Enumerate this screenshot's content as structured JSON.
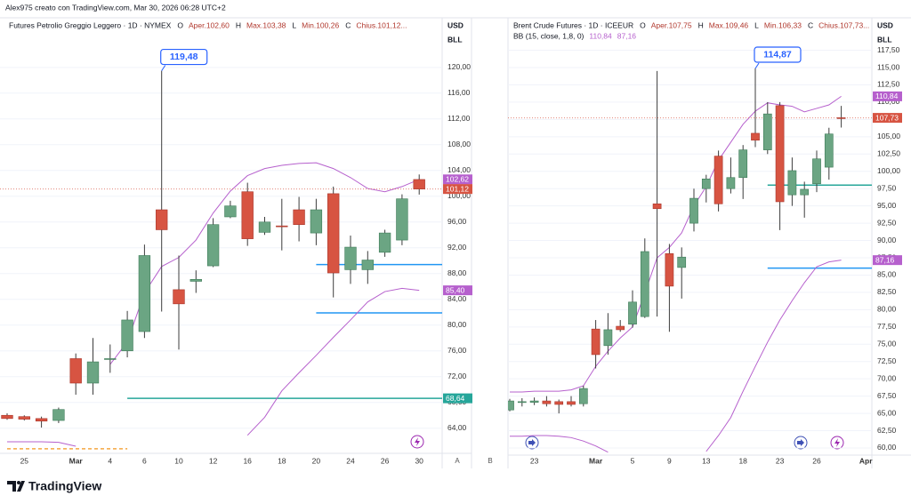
{
  "header": {
    "credit": "Alex975 creato con TradingView.com, Mar 30, 2026 06:28 UTC+2"
  },
  "footer": {
    "logo": "TradingView"
  },
  "axis_buttons": [
    "A",
    "B"
  ],
  "chart_data": [
    {
      "type": "candlestick",
      "title": "Futures Petrolio Greggio Leggero · 1D · NYMEX",
      "ohlc_legend": [
        {
          "key": "O",
          "label": "Aper.102,60"
        },
        {
          "key": "H",
          "label": "Max.103,38"
        },
        {
          "key": "L",
          "label": "Min.100,26"
        },
        {
          "key": "C",
          "label": "Chius.101,12..."
        }
      ],
      "currency": "USD",
      "unit": "BLL",
      "up_color": "#6ba583",
      "down_color": "#d75442",
      "categories": [
        null,
        "25",
        null,
        null,
        "Mar",
        null,
        "4",
        null,
        "6",
        null,
        "10",
        null,
        "12",
        null,
        "16",
        null,
        "18",
        null,
        "20",
        null,
        "24",
        null,
        "26",
        null,
        "30"
      ],
      "open": [
        66.0,
        65.8,
        65.5,
        65.2,
        74.8,
        71.0,
        74.7,
        76.0,
        79.0,
        97.9,
        85.5,
        86.8,
        89.2,
        96.8,
        100.7,
        94.4,
        95.4,
        97.9,
        94.3,
        100.4,
        88.6,
        88.6,
        91.3,
        93.2,
        102.6
      ],
      "high": [
        66.3,
        66.0,
        65.8,
        67.2,
        75.6,
        78.0,
        77.0,
        82.2,
        92.5,
        119.48,
        90.8,
        88.5,
        96.6,
        99.3,
        102.1,
        96.8,
        99.6,
        99.9,
        99.6,
        101.5,
        93.9,
        91.5,
        94.8,
        100.3,
        103.38
      ],
      "low": [
        65.3,
        65.2,
        64.1,
        64.8,
        69.2,
        69.2,
        72.6,
        75.0,
        78.0,
        82.1,
        76.2,
        85.0,
        89.0,
        96.6,
        92.3,
        94.0,
        91.6,
        93.0,
        92.4,
        84.3,
        86.4,
        86.4,
        90.6,
        92.4,
        100.26
      ],
      "close": [
        65.5,
        65.4,
        65.1,
        66.9,
        71.0,
        74.3,
        74.8,
        80.8,
        90.8,
        94.8,
        83.3,
        87.1,
        95.6,
        98.5,
        93.4,
        96.0,
        95.3,
        95.6,
        97.9,
        88.1,
        92.1,
        90.1,
        94.3,
        99.6,
        101.12
      ],
      "close_label": "101,12",
      "max_label": "119,48",
      "bands": [
        {
          "color": "#b660cd",
          "values": [
            null,
            null,
            null,
            null,
            null,
            null,
            73.9,
            77.4,
            85.0,
            89.1,
            90.5,
            93.2,
            97.4,
            100.8,
            103.2,
            104.3,
            104.8,
            105.1,
            105.2,
            104.3,
            102.9,
            101.2,
            100.7,
            101.5,
            102.62
          ],
          "last_label": "102,62"
        },
        {
          "color": "#b660cd",
          "values": [
            61.9,
            61.9,
            61.9,
            61.8,
            61.2,
            null,
            null,
            null,
            null,
            null,
            null,
            null,
            null,
            null,
            62.9,
            65.7,
            69.8,
            72.6,
            75.3,
            78.1,
            80.8,
            83.6,
            85.2,
            85.7,
            85.4
          ],
          "last_label": "85,40"
        }
      ],
      "hlines": [
        {
          "value": 68.64,
          "color": "#26a69a",
          "start": 7,
          "label": "68,64"
        },
        {
          "value": 81.9,
          "color": "#2196f3",
          "start": 18
        },
        {
          "value": 89.4,
          "color": "#2196f3",
          "start": 18
        },
        {
          "value": 60.8,
          "color": "#f5a742",
          "start": 0,
          "end": 7,
          "dashed": true
        }
      ],
      "ylim": [
        60.1,
        127.7
      ],
      "yticks": [
        {
          "value": 64,
          "label": "64,00"
        },
        {
          "value": 68,
          "label": "68,00"
        },
        {
          "value": 72,
          "label": "72,00"
        },
        {
          "value": 76,
          "label": "76,00"
        },
        {
          "value": 80,
          "label": "80,00"
        },
        {
          "value": 84,
          "label": "84,00"
        },
        {
          "value": 88,
          "label": "88,00"
        },
        {
          "value": 92,
          "label": "92,00"
        },
        {
          "value": 96,
          "label": "96,00"
        },
        {
          "value": 100,
          "label": "100,00"
        },
        {
          "value": 104,
          "label": "104,00"
        },
        {
          "value": 108,
          "label": "108,00"
        },
        {
          "value": 112,
          "label": "112,00"
        },
        {
          "value": 116,
          "label": "116,00"
        },
        {
          "value": 120,
          "label": "120,00"
        }
      ],
      "grid": true
    },
    {
      "type": "candlestick",
      "title": "Brent Crude Futures · 1D · ICEEUR",
      "ohlc_legend": [
        {
          "key": "O",
          "label": "Aper.107,75"
        },
        {
          "key": "H",
          "label": "Max.109,46"
        },
        {
          "key": "L",
          "label": "Min.106,33"
        },
        {
          "key": "C",
          "label": "Chius.107,73..."
        }
      ],
      "indicator": "BB (15, close, 1,8, 0)",
      "currency": "USD",
      "unit": "BLL",
      "up_color": "#6ba583",
      "down_color": "#d75442",
      "categories": [
        null,
        null,
        "23",
        null,
        null,
        null,
        null,
        "Mar",
        null,
        null,
        "5",
        null,
        null,
        "9",
        null,
        null,
        "13",
        null,
        null,
        "18",
        null,
        null,
        "23",
        null,
        null,
        "26",
        null,
        null,
        null,
        "Apr"
      ],
      "open": [
        65.5,
        66.6,
        66.6,
        66.8,
        66.7,
        66.7,
        66.4,
        77.2,
        74.8,
        77.6,
        77.9,
        79.0,
        95.3,
        88.1,
        86.1,
        92.5,
        97.5,
        102.2,
        97.5,
        99.1,
        105.5,
        103.1,
        109.5,
        96.6,
        96.6,
        98.2,
        100.6,
        107.75,
        null,
        null
      ],
      "high": [
        67.1,
        67.2,
        67.3,
        67.5,
        67.0,
        67.5,
        69.0,
        78.5,
        79.5,
        78.5,
        82.8,
        90.3,
        114.5,
        89.5,
        89.0,
        97.5,
        99.5,
        103.0,
        102.0,
        103.8,
        114.87,
        110.0,
        110.0,
        102.0,
        98.5,
        103.0,
        106.3,
        109.46,
        null,
        null
      ],
      "low": [
        65.3,
        66.0,
        66.2,
        66.0,
        65.0,
        66.0,
        66.0,
        71.5,
        73.5,
        76.8,
        77.4,
        78.8,
        79.0,
        76.8,
        81.6,
        91.3,
        95.5,
        94.2,
        96.8,
        96.0,
        103.5,
        102.5,
        91.5,
        95.0,
        93.3,
        97.0,
        98.8,
        106.33,
        null,
        null
      ],
      "close": [
        66.8,
        66.7,
        66.8,
        66.4,
        66.3,
        66.3,
        68.6,
        73.5,
        77.1,
        77.1,
        81.1,
        88.4,
        94.6,
        83.4,
        87.6,
        96.1,
        98.9,
        95.3,
        99.1,
        103.1,
        104.5,
        108.3,
        95.6,
        100.1,
        97.4,
        101.8,
        105.4,
        107.73,
        null,
        null
      ],
      "close_label": "107,73",
      "max_label": "114,87",
      "bands": [
        {
          "color": "#b660cd",
          "values": [
            68.1,
            68.1,
            68.2,
            68.2,
            68.2,
            68.4,
            69.0,
            71.8,
            74.0,
            75.9,
            77.5,
            82.4,
            87.5,
            89.0,
            91.1,
            95.0,
            97.8,
            101.6,
            104.2,
            106.8,
            108.7,
            109.9,
            109.6,
            109.4,
            108.6,
            109.1,
            109.6,
            110.84,
            null,
            null
          ],
          "last_label": "110,84"
        },
        {
          "color": "#b660cd",
          "values": [
            61.7,
            61.7,
            61.8,
            61.8,
            61.7,
            61.5,
            61.0,
            60.3,
            59.4,
            null,
            null,
            null,
            null,
            null,
            null,
            null,
            59.5,
            61.8,
            64.4,
            68.2,
            71.8,
            75.3,
            78.5,
            81.3,
            83.9,
            86.2,
            86.9,
            87.16,
            null,
            null
          ],
          "last_label": "87,16"
        }
      ],
      "hlines": [
        {
          "value": 98.0,
          "color": "#26a69a",
          "start": 21
        },
        {
          "value": 86.0,
          "color": "#2196f3",
          "start": 21
        }
      ],
      "ylim": [
        58.97,
        122.2
      ],
      "yticks": [
        {
          "value": 60,
          "label": "60,00"
        },
        {
          "value": 62.5,
          "label": "62,50"
        },
        {
          "value": 65,
          "label": "65,00"
        },
        {
          "value": 67.5,
          "label": "67,50"
        },
        {
          "value": 70,
          "label": "70,00"
        },
        {
          "value": 72.5,
          "label": "72,50"
        },
        {
          "value": 75,
          "label": "75,00"
        },
        {
          "value": 77.5,
          "label": "77,50"
        },
        {
          "value": 80,
          "label": "80,00"
        },
        {
          "value": 82.5,
          "label": "82,50"
        },
        {
          "value": 85,
          "label": "85,00"
        },
        {
          "value": 87.5,
          "label": "87,50"
        },
        {
          "value": 90,
          "label": "90,00"
        },
        {
          "value": 92.5,
          "label": "92,50"
        },
        {
          "value": 95,
          "label": "95,00"
        },
        {
          "value": 97.5,
          "label": "97,50"
        },
        {
          "value": 100,
          "label": "100,00"
        },
        {
          "value": 102.5,
          "label": "102,50"
        },
        {
          "value": 105,
          "label": "105,00"
        },
        {
          "value": 107.5,
          "label": "107,50"
        },
        {
          "value": 110,
          "label": "110,00"
        },
        {
          "value": 112.5,
          "label": "112,50"
        },
        {
          "value": 115,
          "label": "115,00"
        },
        {
          "value": 117.5,
          "label": "117,50"
        }
      ],
      "grid": true
    }
  ]
}
